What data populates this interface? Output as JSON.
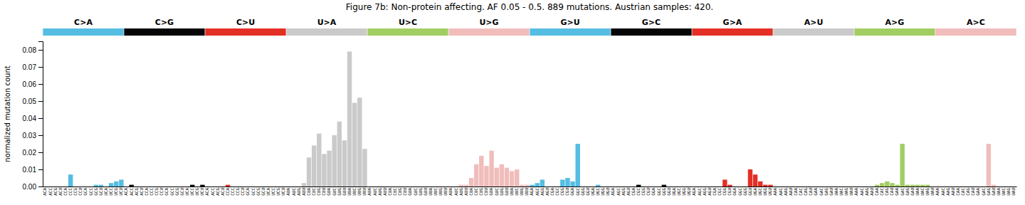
{
  "chart_data": {
    "type": "bar",
    "title": "Figure 7b: Non-protein affecting. AF 0.05 - 0.5. 889 mutations. Austrian samples: 420.",
    "ylabel": "normalized mutation count",
    "ylim": [
      0,
      0.085
    ],
    "yticks": [
      {
        "value": 0.0,
        "label": "0.00"
      },
      0.01,
      0.02,
      0.03,
      0.04,
      0.05,
      0.06,
      0.07,
      0.08
    ],
    "grid": false,
    "groups": [
      {
        "name": "C>A",
        "color": "#55BDE2"
      },
      {
        "name": "C>G",
        "color": "#050608"
      },
      {
        "name": "C>U",
        "color": "#E32F25"
      },
      {
        "name": "U>A",
        "color": "#CBCACB"
      },
      {
        "name": "U>C",
        "color": "#A2CD62"
      },
      {
        "name": "U>G",
        "color": "#F0BDBB"
      },
      {
        "name": "G>U",
        "color": "#55BDE2"
      },
      {
        "name": "G>C",
        "color": "#050608"
      },
      {
        "name": "G>A",
        "color": "#E32F25"
      },
      {
        "name": "A>U",
        "color": "#CBCACB"
      },
      {
        "name": "A>G",
        "color": "#A2CD62"
      },
      {
        "name": "A>C",
        "color": "#F0BDBB"
      }
    ],
    "categories": [
      "ACA",
      "ACC",
      "ACG",
      "ACU",
      "CCA",
      "CCC",
      "CCG",
      "CCU",
      "GCA",
      "GCC",
      "GCG",
      "GCU",
      "UCA",
      "UCC",
      "UCG",
      "UCU",
      "ACA",
      "ACC",
      "ACG",
      "ACU",
      "CCA",
      "CCC",
      "CCG",
      "CCU",
      "GCA",
      "GCC",
      "GCG",
      "GCU",
      "UCA",
      "UCC",
      "UCG",
      "UCU",
      "ACA",
      "ACC",
      "ACG",
      "ACU",
      "CCA",
      "CCC",
      "CCG",
      "CCU",
      "GCA",
      "GCC",
      "GCG",
      "GCU",
      "UCA",
      "UCC",
      "UCG",
      "UCU",
      "AUA",
      "AUC",
      "AUG",
      "AUU",
      "CUA",
      "CUC",
      "CUG",
      "CUU",
      "GUA",
      "GUC",
      "GUG",
      "GUU",
      "UUA",
      "UUC",
      "UUG",
      "UUU",
      "AUA",
      "AUC",
      "AUG",
      "AUU",
      "CUA",
      "CUC",
      "CUG",
      "CUU",
      "GUA",
      "GUC",
      "GUG",
      "GUU",
      "UUA",
      "UUC",
      "UUG",
      "UUU",
      "AUA",
      "AUC",
      "AUG",
      "AUU",
      "CUA",
      "CUC",
      "CUG",
      "CUU",
      "GUA",
      "GUC",
      "GUG",
      "GUU",
      "UUA",
      "UUC",
      "UUG",
      "UUU",
      "AGA",
      "AGC",
      "AGG",
      "AGU",
      "CGA",
      "CGC",
      "CGG",
      "CGU",
      "GGA",
      "GGC",
      "GGG",
      "GGU",
      "UGA",
      "UGC",
      "UGG",
      "UGU",
      "AGA",
      "AGC",
      "AGG",
      "AGU",
      "CGA",
      "CGC",
      "CGG",
      "CGU",
      "GGA",
      "GGC",
      "GGG",
      "GGU",
      "UGA",
      "UGC",
      "UGG",
      "UGU",
      "AGA",
      "AGC",
      "AGG",
      "AGU",
      "CGA",
      "CGC",
      "CGG",
      "CGU",
      "GGA",
      "GGC",
      "GGG",
      "GGU",
      "UGA",
      "UGC",
      "UGG",
      "UGU",
      "AAA",
      "AAC",
      "AAG",
      "AAU",
      "CAA",
      "CAC",
      "CAG",
      "CAU",
      "GAA",
      "GAC",
      "GAG",
      "GAU",
      "UAA",
      "UAC",
      "UAG",
      "UAU",
      "AAA",
      "AAC",
      "AAG",
      "AAU",
      "CAA",
      "CAC",
      "CAG",
      "CAU",
      "GAA",
      "GAC",
      "GAG",
      "GAU",
      "UAA",
      "UAC",
      "UAG",
      "UAU",
      "AAA",
      "AAC",
      "AAG",
      "AAU",
      "CAA",
      "CAC",
      "CAG",
      "CAU",
      "GAA",
      "GAC",
      "GAG",
      "GAU",
      "UAA",
      "UAC",
      "UAG",
      "UAU"
    ],
    "values": [
      0.0,
      0.0,
      0.0,
      0.0,
      0.0,
      0.007,
      0.0,
      0.0,
      0.0,
      0.0,
      0.001,
      0.001,
      0.0,
      0.002,
      0.003,
      0.004,
      0.0,
      0.001,
      0.0,
      0.0,
      0.0,
      0.0,
      0.0,
      0.0,
      0.0,
      0.0,
      0.0,
      0.0,
      0.0,
      0.001,
      0.0,
      0.001,
      0.0,
      0.0,
      0.0,
      0.0,
      0.001,
      0.0,
      0.0,
      0.0,
      0.0,
      0.0,
      0.0,
      0.0,
      0.0,
      0.0,
      0.0,
      0.0,
      0.0,
      0.0,
      0.0,
      0.002,
      0.017,
      0.024,
      0.031,
      0.019,
      0.021,
      0.03,
      0.038,
      0.027,
      0.079,
      0.049,
      0.052,
      0.022,
      0.0,
      0.0,
      0.0,
      0.0,
      0.0,
      0.0,
      0.0,
      0.0,
      0.0,
      0.0,
      0.0,
      0.0,
      0.0,
      0.0,
      0.0,
      0.0,
      0.0,
      0.0,
      0.001,
      0.001,
      0.005,
      0.013,
      0.018,
      0.012,
      0.021,
      0.011,
      0.013,
      0.011,
      0.009,
      0.01,
      0.001,
      0.001,
      0.001,
      0.002,
      0.004,
      0.0,
      0.0,
      0.0,
      0.004,
      0.005,
      0.003,
      0.025,
      0.0,
      0.0,
      0.0,
      0.001,
      0.0,
      0.0,
      0.0,
      0.0,
      0.0,
      0.0,
      0.0,
      0.001,
      0.0,
      0.0,
      0.0,
      0.0,
      0.001,
      0.0,
      0.0,
      0.0,
      0.0,
      0.0,
      0.0,
      0.0,
      0.0,
      0.0,
      0.0,
      0.0,
      0.004,
      0.001,
      0.0,
      0.0,
      0.0,
      0.01,
      0.007,
      0.003,
      0.001,
      0.001,
      0.0,
      0.0,
      0.0,
      0.0,
      0.0,
      0.0,
      0.0,
      0.0,
      0.0,
      0.0,
      0.0,
      0.0,
      0.0,
      0.0,
      0.0,
      0.0,
      0.0,
      0.0,
      0.0,
      0.0,
      0.001,
      0.002,
      0.003,
      0.002,
      0.001,
      0.025,
      0.001,
      0.001,
      0.001,
      0.001,
      0.001,
      0.0,
      0.0,
      0.0,
      0.0,
      0.0,
      0.0,
      0.0,
      0.0,
      0.0,
      0.0,
      0.0,
      0.025,
      0.001,
      0.0,
      0.0,
      0.0,
      0.0
    ],
    "colors": [
      "#55BDE2",
      "#55BDE2",
      "#55BDE2",
      "#55BDE2",
      "#55BDE2",
      "#55BDE2",
      "#55BDE2",
      "#55BDE2",
      "#55BDE2",
      "#55BDE2",
      "#55BDE2",
      "#55BDE2",
      "#55BDE2",
      "#55BDE2",
      "#55BDE2",
      "#55BDE2",
      "#050608",
      "#050608",
      "#050608",
      "#050608",
      "#050608",
      "#050608",
      "#050608",
      "#050608",
      "#050608",
      "#050608",
      "#050608",
      "#050608",
      "#050608",
      "#050608",
      "#050608",
      "#050608",
      "#E32F25",
      "#E32F25",
      "#E32F25",
      "#E32F25",
      "#E32F25",
      "#E32F25",
      "#E32F25",
      "#E32F25",
      "#E32F25",
      "#E32F25",
      "#E32F25",
      "#E32F25",
      "#E32F25",
      "#E32F25",
      "#E32F25",
      "#E32F25",
      "#CBCACB",
      "#CBCACB",
      "#CBCACB",
      "#CBCACB",
      "#CBCACB",
      "#CBCACB",
      "#CBCACB",
      "#CBCACB",
      "#CBCACB",
      "#CBCACB",
      "#CBCACB",
      "#CBCACB",
      "#CBCACB",
      "#CBCACB",
      "#CBCACB",
      "#CBCACB",
      "#A2CD62",
      "#A2CD62",
      "#A2CD62",
      "#A2CD62",
      "#A2CD62",
      "#A2CD62",
      "#A2CD62",
      "#A2CD62",
      "#A2CD62",
      "#A2CD62",
      "#A2CD62",
      "#A2CD62",
      "#A2CD62",
      "#A2CD62",
      "#A2CD62",
      "#A2CD62",
      "#F0BDBB",
      "#F0BDBB",
      "#F0BDBB",
      "#F0BDBB",
      "#F0BDBB",
      "#F0BDBB",
      "#F0BDBB",
      "#F0BDBB",
      "#F0BDBB",
      "#F0BDBB",
      "#F0BDBB",
      "#F0BDBB",
      "#F0BDBB",
      "#F0BDBB",
      "#F0BDBB",
      "#F0BDBB",
      "#55BDE2",
      "#55BDE2",
      "#55BDE2",
      "#55BDE2",
      "#55BDE2",
      "#55BDE2",
      "#55BDE2",
      "#55BDE2",
      "#55BDE2",
      "#55BDE2",
      "#55BDE2",
      "#55BDE2",
      "#55BDE2",
      "#55BDE2",
      "#55BDE2",
      "#55BDE2",
      "#050608",
      "#050608",
      "#050608",
      "#050608",
      "#050608",
      "#050608",
      "#050608",
      "#050608",
      "#050608",
      "#050608",
      "#050608",
      "#050608",
      "#050608",
      "#050608",
      "#050608",
      "#050608",
      "#E32F25",
      "#E32F25",
      "#E32F25",
      "#E32F25",
      "#E32F25",
      "#E32F25",
      "#E32F25",
      "#E32F25",
      "#E32F25",
      "#E32F25",
      "#E32F25",
      "#E32F25",
      "#E32F25",
      "#E32F25",
      "#E32F25",
      "#E32F25",
      "#CBCACB",
      "#CBCACB",
      "#CBCACB",
      "#CBCACB",
      "#CBCACB",
      "#CBCACB",
      "#CBCACB",
      "#CBCACB",
      "#CBCACB",
      "#CBCACB",
      "#CBCACB",
      "#CBCACB",
      "#CBCACB",
      "#CBCACB",
      "#CBCACB",
      "#CBCACB",
      "#A2CD62",
      "#A2CD62",
      "#A2CD62",
      "#A2CD62",
      "#A2CD62",
      "#A2CD62",
      "#A2CD62",
      "#A2CD62",
      "#A2CD62",
      "#A2CD62",
      "#A2CD62",
      "#A2CD62",
      "#A2CD62",
      "#A2CD62",
      "#A2CD62",
      "#A2CD62",
      "#F0BDBB",
      "#F0BDBB",
      "#F0BDBB",
      "#F0BDBB",
      "#F0BDBB",
      "#F0BDBB",
      "#F0BDBB",
      "#F0BDBB",
      "#F0BDBB",
      "#F0BDBB",
      "#F0BDBB",
      "#F0BDBB",
      "#F0BDBB",
      "#F0BDBB",
      "#F0BDBB",
      "#F0BDBB"
    ]
  }
}
